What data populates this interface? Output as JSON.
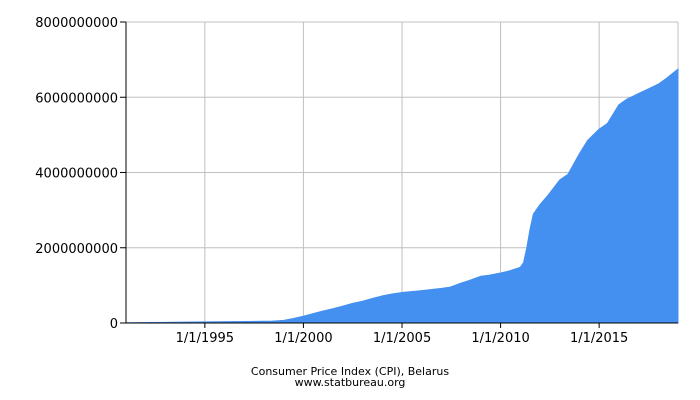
{
  "chart_data": {
    "type": "area",
    "title": "Consumer Price Index (CPI), Belarus",
    "source": "www.statbureau.org",
    "xlabel": "",
    "ylabel": "",
    "x_range": [
      "1991-01-01",
      "2019-01-01"
    ],
    "ylim": [
      0,
      8000000000
    ],
    "y_ticks": [
      {
        "value": 0,
        "label": "0"
      },
      {
        "value": 2000000000,
        "label": "2000000000"
      },
      {
        "value": 4000000000,
        "label": "4000000000"
      },
      {
        "value": 6000000000,
        "label": "6000000000"
      },
      {
        "value": 8000000000,
        "label": "8000000000"
      }
    ],
    "x_ticks": [
      {
        "date": "1995-01-01",
        "label": "1/1/1995"
      },
      {
        "date": "2000-01-01",
        "label": "1/1/2000"
      },
      {
        "date": "2005-01-01",
        "label": "1/1/2005"
      },
      {
        "date": "2010-01-01",
        "label": "1/1/2010"
      },
      {
        "date": "2015-01-01",
        "label": "1/1/2015"
      }
    ],
    "grid": true,
    "fill_color": "#4490f0",
    "series": [
      {
        "x": [
          "1991-01-01",
          "1993-01-01",
          "1995-01-01",
          "1997-01-01",
          "1998-06-01",
          "1999-01-01",
          "1999-07-01",
          "2000-01-01",
          "2000-07-01",
          "2001-01-01",
          "2001-07-01",
          "2002-01-01",
          "2002-07-01",
          "2003-01-01",
          "2003-07-01",
          "2004-01-01",
          "2004-07-01",
          "2005-01-01",
          "2006-01-01",
          "2007-01-01",
          "2007-06-01",
          "2008-01-01",
          "2008-06-01",
          "2009-01-01",
          "2009-06-01",
          "2010-01-01",
          "2010-06-01",
          "2011-01-01",
          "2011-03-01",
          "2011-05-01",
          "2011-07-01",
          "2011-09-01",
          "2012-01-01",
          "2012-06-01",
          "2013-01-01",
          "2013-06-01",
          "2014-01-01",
          "2014-06-01",
          "2015-01-01",
          "2015-06-01",
          "2016-01-01",
          "2016-06-01",
          "2017-01-01",
          "2017-06-01",
          "2018-01-01",
          "2018-06-01",
          "2019-01-01"
        ],
        "values": [
          5000000,
          15000000,
          30000000,
          40000000,
          50000000,
          70000000,
          120000000,
          180000000,
          250000000,
          320000000,
          380000000,
          450000000,
          520000000,
          580000000,
          650000000,
          720000000,
          770000000,
          810000000,
          860000000,
          920000000,
          950000000,
          1060000000,
          1130000000,
          1240000000,
          1270000000,
          1330000000,
          1380000000,
          1480000000,
          1600000000,
          2000000000,
          2500000000,
          2900000000,
          3150000000,
          3400000000,
          3800000000,
          3950000000,
          4500000000,
          4850000000,
          5150000000,
          5300000000,
          5800000000,
          5950000000,
          6100000000,
          6200000000,
          6350000000,
          6500000000,
          6750000000
        ]
      }
    ]
  }
}
